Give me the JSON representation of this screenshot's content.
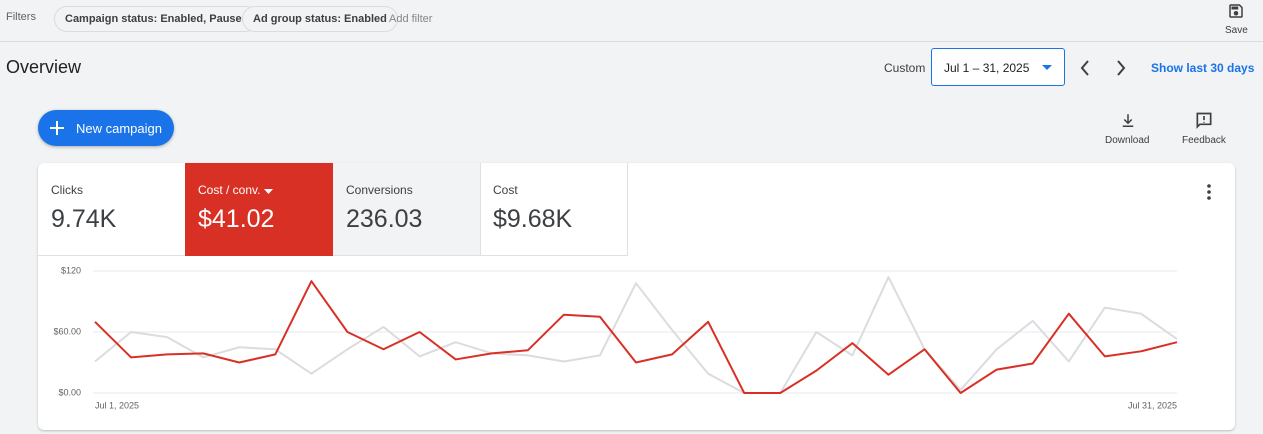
{
  "filters": {
    "label": "Filters",
    "chips": [
      "Campaign status: Enabled, Paused",
      "Ad group status: Enabled"
    ],
    "add": "Add filter"
  },
  "save": "Save",
  "header": {
    "title": "Overview",
    "range_label": "Custom",
    "date_range": "Jul 1 – 31, 2025",
    "show_last": "Show last 30 days"
  },
  "new_campaign": "New campaign",
  "actions": [
    "Download",
    "Feedback"
  ],
  "metrics": [
    {
      "label": "Clicks",
      "value": "9.74K"
    },
    {
      "label": "Cost / conv.",
      "value": "$41.02"
    },
    {
      "label": "Conversions",
      "value": "236.03"
    },
    {
      "label": "Cost",
      "value": "$9.68K"
    }
  ],
  "chart_data": {
    "type": "line",
    "categories": [
      "Jul 1, 2025",
      null,
      null,
      null,
      null,
      null,
      null,
      null,
      null,
      null,
      null,
      null,
      null,
      null,
      null,
      null,
      null,
      null,
      null,
      null,
      null,
      null,
      null,
      null,
      null,
      null,
      null,
      null,
      null,
      null,
      "Jul 31, 2025"
    ],
    "series": [
      {
        "color": "#dadce0",
        "values": [
          31,
          60,
          55,
          35,
          45,
          43,
          19,
          43,
          65,
          36,
          50,
          39,
          37,
          31,
          37,
          108,
          62,
          19,
          0,
          0,
          60,
          37,
          114,
          43,
          3,
          43,
          71,
          31,
          84,
          78,
          53
        ]
      },
      {
        "color": "#d93025",
        "values": [
          70,
          35,
          38,
          39,
          30,
          38,
          110,
          60,
          43,
          60,
          33,
          39,
          42,
          77,
          75,
          30,
          38,
          70,
          0,
          0,
          22,
          49,
          18,
          43,
          0,
          23,
          29,
          78,
          36,
          41,
          50
        ]
      }
    ],
    "ylim": [
      0,
      120
    ],
    "yticks": [
      {
        "value": 0,
        "label": "$0.00"
      },
      {
        "value": 60,
        "label": "$60.00"
      },
      {
        "value": 120,
        "label": "$120"
      }
    ],
    "grid": true
  }
}
